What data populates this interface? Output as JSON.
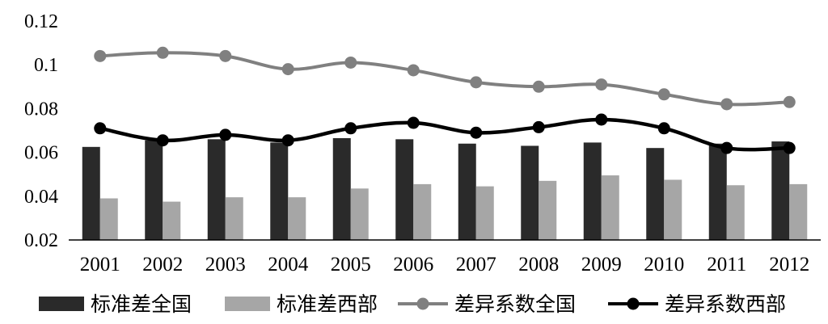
{
  "chart_data": {
    "type": "bar",
    "categories": [
      "2001",
      "2002",
      "2003",
      "2004",
      "2005",
      "2006",
      "2007",
      "2008",
      "2009",
      "2010",
      "2011",
      "2012"
    ],
    "ylim": [
      0.02,
      0.12
    ],
    "yticks": [
      "0.02",
      "0.04",
      "0.06",
      "0.08",
      "0.1",
      "0.12"
    ],
    "grid": false,
    "legend_position": "bottom",
    "series": [
      {
        "name": "标准差全国",
        "type": "bar",
        "color": "#2a2a2a",
        "values": [
          0.0625,
          0.0655,
          0.066,
          0.0645,
          0.0665,
          0.066,
          0.064,
          0.063,
          0.0645,
          0.062,
          0.064,
          0.065
        ]
      },
      {
        "name": "标准差西部",
        "type": "bar",
        "color": "#a6a6a6",
        "values": [
          0.039,
          0.0375,
          0.0395,
          0.0395,
          0.0435,
          0.0455,
          0.0445,
          0.047,
          0.0495,
          0.0475,
          0.045,
          0.0455
        ]
      },
      {
        "name": "差异系数全国",
        "type": "line",
        "color": "#808080",
        "values": [
          0.104,
          0.1055,
          0.104,
          0.098,
          0.101,
          0.0975,
          0.092,
          0.09,
          0.091,
          0.0865,
          0.082,
          0.083
        ]
      },
      {
        "name": "差异系数西部",
        "type": "line",
        "color": "#000000",
        "values": [
          0.071,
          0.0655,
          0.068,
          0.0655,
          0.071,
          0.0735,
          0.069,
          0.0715,
          0.075,
          0.071,
          0.062,
          0.062
        ]
      }
    ]
  }
}
